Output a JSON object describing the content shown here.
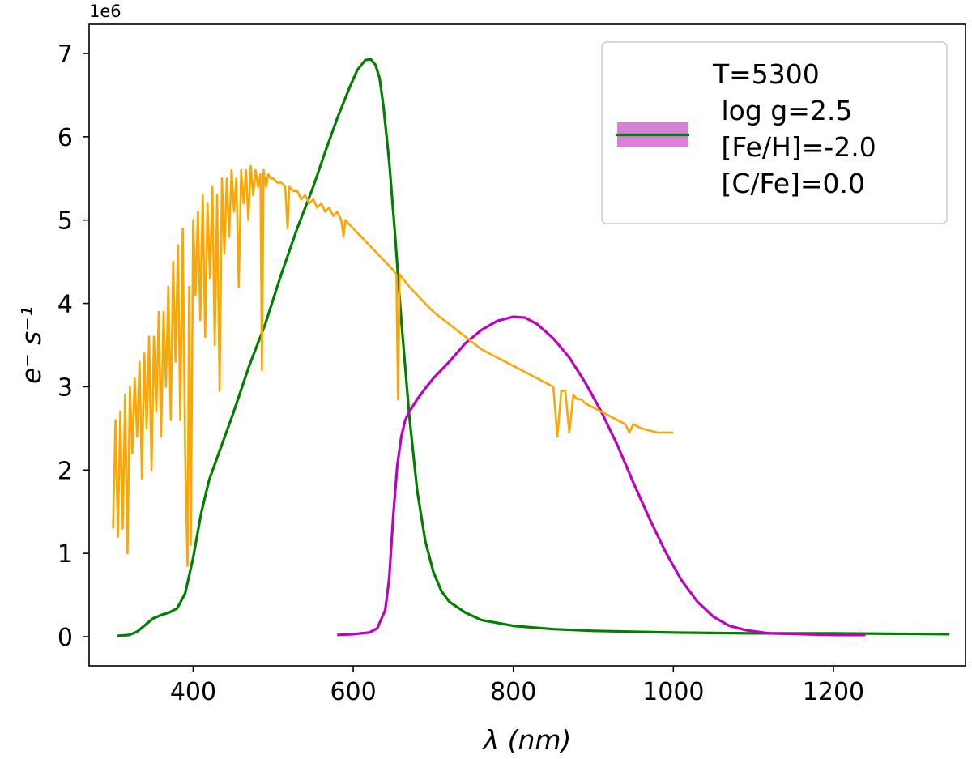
{
  "chart_data": {
    "type": "line",
    "xlabel": "λ (nm)",
    "ylabel": "e⁻ s⁻¹",
    "y_offset_label": "1e6",
    "xlim": [
      270,
      1365
    ],
    "ylim": [
      -0.35,
      7.35
    ],
    "x_ticks": [
      400,
      600,
      800,
      1000,
      1200
    ],
    "y_ticks": [
      0,
      1,
      2,
      3,
      4,
      5,
      6,
      7
    ],
    "grid": false,
    "legend_placement": "top-right",
    "legend": {
      "lines": [
        "T=5300",
        " log g=2.5",
        " [Fe/H]=-2.0",
        " [C/Fe]=0.0"
      ]
    },
    "colors": {
      "spectrum": "#ffa500",
      "green_filter": "#008000",
      "magenta_filter": "#bf00bf",
      "legend_patch": "#d97fd9"
    },
    "series": [
      {
        "color": "#008000",
        "x": [
          305,
          320,
          330,
          340,
          350,
          360,
          370,
          380,
          390,
          400,
          410,
          420,
          430,
          450,
          470,
          490,
          510,
          530,
          550,
          565,
          580,
          595,
          605,
          615,
          622,
          628,
          633,
          638,
          645,
          652,
          660,
          670,
          680,
          690,
          700,
          710,
          720,
          740,
          760,
          800,
          850,
          900,
          1000,
          1100,
          1200,
          1345
        ],
        "y": [
          0.01,
          0.02,
          0.06,
          0.14,
          0.22,
          0.26,
          0.29,
          0.34,
          0.52,
          0.95,
          1.48,
          1.88,
          2.15,
          2.68,
          3.25,
          3.75,
          4.35,
          4.9,
          5.4,
          5.82,
          6.22,
          6.58,
          6.8,
          6.92,
          6.93,
          6.86,
          6.7,
          6.35,
          5.7,
          4.85,
          3.8,
          2.65,
          1.75,
          1.15,
          0.78,
          0.55,
          0.42,
          0.29,
          0.2,
          0.13,
          0.09,
          0.07,
          0.05,
          0.04,
          0.04,
          0.03
        ]
      },
      {
        "color": "#bf00bf",
        "x": [
          580,
          600,
          620,
          630,
          640,
          645,
          650,
          655,
          660,
          665,
          670,
          680,
          690,
          700,
          720,
          740,
          760,
          780,
          800,
          815,
          830,
          850,
          870,
          890,
          910,
          930,
          950,
          970,
          990,
          1010,
          1030,
          1050,
          1070,
          1090,
          1120,
          1160,
          1200,
          1240
        ],
        "y": [
          0.02,
          0.03,
          0.05,
          0.1,
          0.32,
          0.7,
          1.45,
          2.05,
          2.4,
          2.6,
          2.7,
          2.85,
          2.98,
          3.1,
          3.3,
          3.52,
          3.68,
          3.79,
          3.84,
          3.83,
          3.75,
          3.58,
          3.35,
          3.05,
          2.7,
          2.3,
          1.85,
          1.42,
          1.02,
          0.68,
          0.42,
          0.24,
          0.13,
          0.08,
          0.04,
          0.03,
          0.02,
          0.02
        ]
      },
      {
        "color": "#ffa500",
        "x": [
          300,
          303,
          306,
          309,
          312,
          315,
          318,
          321,
          324,
          327,
          330,
          333,
          336,
          339,
          342,
          345,
          348,
          351,
          354,
          357,
          360,
          363,
          366,
          369,
          372,
          375,
          378,
          381,
          384,
          387,
          390,
          393,
          395,
          397,
          400,
          403,
          406,
          409,
          412,
          415,
          418,
          421,
          424,
          427,
          430,
          433,
          436,
          439,
          442,
          445,
          448,
          451,
          454,
          457,
          460,
          463,
          466,
          469,
          472,
          475,
          478,
          481,
          484,
          486,
          488,
          491,
          494,
          497,
          500,
          505,
          510,
          515,
          518,
          520,
          525,
          530,
          535,
          540,
          545,
          550,
          555,
          560,
          565,
          570,
          575,
          580,
          585,
          588,
          590,
          595,
          600,
          605,
          610,
          615,
          620,
          625,
          630,
          635,
          640,
          645,
          650,
          654,
          656,
          658,
          662,
          670,
          680,
          690,
          700,
          720,
          740,
          760,
          780,
          800,
          820,
          840,
          850,
          855,
          860,
          865,
          870,
          875,
          880,
          885,
          890,
          900,
          920,
          940,
          945,
          950,
          960,
          980,
          1000
        ],
        "y": [
          1.3,
          2.6,
          1.2,
          2.7,
          1.3,
          2.9,
          1.0,
          3.0,
          2.2,
          3.1,
          2.4,
          3.3,
          1.9,
          3.4,
          2.5,
          3.6,
          2.0,
          3.6,
          2.7,
          3.9,
          2.4,
          3.9,
          3.0,
          4.2,
          2.6,
          4.5,
          3.3,
          4.7,
          2.6,
          4.9,
          2.2,
          0.85,
          4.2,
          1.1,
          5.0,
          4.1,
          5.1,
          3.8,
          5.3,
          3.6,
          5.2,
          4.3,
          5.4,
          3.5,
          5.3,
          2.95,
          5.5,
          4.6,
          5.5,
          4.8,
          5.6,
          5.1,
          5.5,
          4.2,
          5.6,
          5.2,
          5.6,
          5.0,
          5.65,
          5.3,
          5.6,
          5.4,
          5.55,
          3.2,
          5.6,
          5.4,
          5.55,
          5.5,
          5.5,
          5.45,
          5.45,
          5.4,
          4.9,
          5.4,
          5.35,
          5.35,
          5.25,
          5.3,
          5.2,
          5.25,
          5.15,
          5.2,
          5.1,
          5.15,
          5.05,
          5.1,
          5.0,
          4.8,
          5.0,
          4.95,
          4.9,
          4.85,
          4.8,
          4.75,
          4.7,
          4.65,
          4.6,
          4.55,
          4.5,
          4.45,
          4.4,
          4.35,
          2.85,
          4.35,
          4.3,
          4.2,
          4.1,
          4.0,
          3.9,
          3.75,
          3.6,
          3.45,
          3.35,
          3.25,
          3.15,
          3.05,
          3.0,
          2.4,
          2.95,
          2.95,
          2.45,
          2.9,
          2.85,
          2.85,
          2.8,
          2.75,
          2.65,
          2.55,
          2.45,
          2.55,
          2.5,
          2.45,
          2.45
        ]
      }
    ]
  }
}
